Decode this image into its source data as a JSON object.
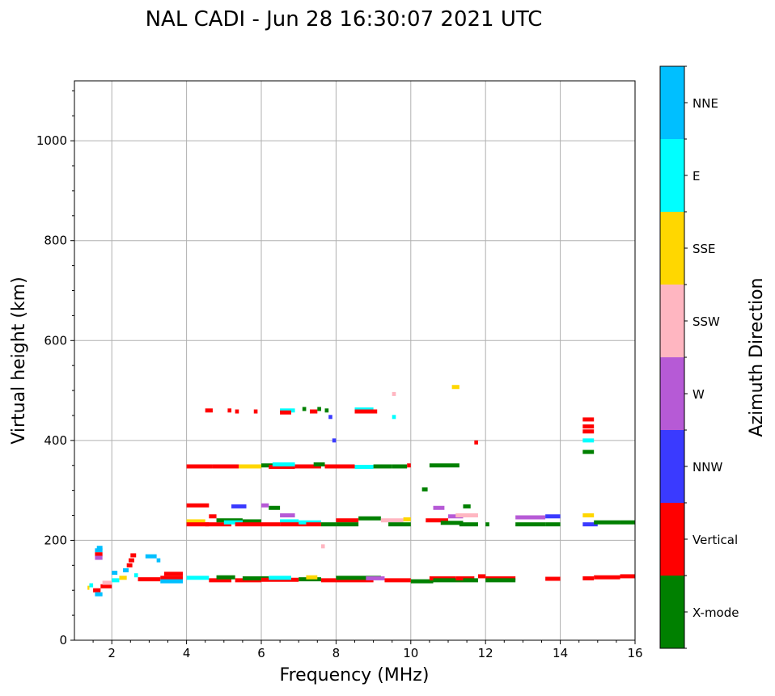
{
  "chart_data": {
    "type": "scatter",
    "title": "NAL CADI - Jun 28 16:30:07 2021 UTC",
    "xlabel": "Frequency (MHz)",
    "ylabel": "Virtual height (km)",
    "xlim": [
      1,
      16
    ],
    "ylim": [
      0,
      1120
    ],
    "xticks": [
      2,
      4,
      6,
      8,
      10,
      12,
      14,
      16
    ],
    "yticks": [
      0,
      200,
      400,
      600,
      800,
      1000
    ],
    "grid": true,
    "colorbar": {
      "label": "Azimuth Direction",
      "categories": [
        "X-mode",
        "Vertical",
        "NNW",
        "W",
        "SSW",
        "SSE",
        "E",
        "NNE"
      ],
      "colors": [
        "#008000",
        "#ff0000",
        "#3a3aff",
        "#b65ad6",
        "#ffb6c1",
        "#ffd700",
        "#00ffff",
        "#00bfff"
      ]
    },
    "segments_format": [
      "freq_start_MHz",
      "freq_end_MHz",
      "height_km",
      "direction_index"
    ],
    "segments": [
      [
        1.35,
        1.4,
        105,
        5
      ],
      [
        1.4,
        1.5,
        110,
        6
      ],
      [
        1.5,
        1.7,
        100,
        1
      ],
      [
        1.55,
        1.75,
        92,
        7
      ],
      [
        1.55,
        1.75,
        180,
        7
      ],
      [
        1.55,
        1.75,
        172,
        1
      ],
      [
        1.55,
        1.75,
        165,
        3
      ],
      [
        1.6,
        1.75,
        185,
        7
      ],
      [
        1.7,
        2.0,
        108,
        1
      ],
      [
        1.75,
        2.0,
        115,
        4
      ],
      [
        2.0,
        2.2,
        120,
        6
      ],
      [
        2.0,
        2.15,
        135,
        7
      ],
      [
        2.2,
        2.4,
        125,
        5
      ],
      [
        2.3,
        2.45,
        140,
        7
      ],
      [
        2.4,
        2.55,
        150,
        1
      ],
      [
        2.45,
        2.6,
        160,
        1
      ],
      [
        2.5,
        2.65,
        170,
        1
      ],
      [
        2.6,
        2.7,
        130,
        6
      ],
      [
        2.7,
        3.3,
        122,
        1
      ],
      [
        2.9,
        3.2,
        168,
        7
      ],
      [
        3.2,
        3.3,
        160,
        7
      ],
      [
        3.3,
        3.9,
        125,
        1
      ],
      [
        3.3,
        3.9,
        118,
        7
      ],
      [
        3.4,
        3.9,
        133,
        1
      ],
      [
        4.0,
        4.6,
        125,
        6
      ],
      [
        4.6,
        5.2,
        120,
        1
      ],
      [
        4.8,
        5.3,
        126,
        0
      ],
      [
        5.3,
        6.0,
        120,
        1
      ],
      [
        5.5,
        6.2,
        124,
        0
      ],
      [
        6.0,
        7.0,
        121,
        1
      ],
      [
        6.2,
        6.8,
        125,
        6
      ],
      [
        7.0,
        7.6,
        122,
        0
      ],
      [
        7.2,
        7.5,
        126,
        5
      ],
      [
        7.6,
        8.0,
        120,
        1
      ],
      [
        8.0,
        9.0,
        120,
        1
      ],
      [
        8.0,
        9.2,
        125,
        0
      ],
      [
        8.8,
        9.3,
        124,
        3
      ],
      [
        9.3,
        10.0,
        120,
        1
      ],
      [
        10.0,
        10.6,
        118,
        0
      ],
      [
        10.5,
        11.2,
        124,
        1
      ],
      [
        10.6,
        11.4,
        120,
        0
      ],
      [
        11.2,
        11.7,
        124,
        1
      ],
      [
        11.4,
        11.8,
        120,
        0
      ],
      [
        11.8,
        12.0,
        128,
        1
      ],
      [
        12.0,
        12.8,
        124,
        1
      ],
      [
        12.0,
        12.8,
        120,
        0
      ],
      [
        13.6,
        14.0,
        123,
        1
      ],
      [
        14.6,
        14.9,
        124,
        1
      ],
      [
        14.9,
        15.6,
        126,
        1
      ],
      [
        15.6,
        16.0,
        128,
        1
      ],
      [
        4.0,
        4.5,
        238,
        5
      ],
      [
        4.0,
        4.6,
        232,
        1
      ],
      [
        4.5,
        5.2,
        232,
        1
      ],
      [
        4.8,
        5.5,
        240,
        0
      ],
      [
        5.0,
        5.6,
        236,
        6
      ],
      [
        5.5,
        6.0,
        238,
        0
      ],
      [
        5.3,
        6.0,
        232,
        1
      ],
      [
        6.0,
        6.5,
        232,
        1
      ],
      [
        6.2,
        6.5,
        265,
        0
      ],
      [
        6.5,
        6.9,
        250,
        3
      ],
      [
        6.5,
        7.0,
        238,
        6
      ],
      [
        6.5,
        7.2,
        232,
        1
      ],
      [
        7.0,
        7.6,
        236,
        6
      ],
      [
        7.2,
        7.6,
        232,
        1
      ],
      [
        7.6,
        8.0,
        232,
        0
      ],
      [
        8.0,
        8.6,
        240,
        1
      ],
      [
        8.0,
        8.6,
        232,
        0
      ],
      [
        8.6,
        9.2,
        244,
        0
      ],
      [
        9.2,
        9.8,
        240,
        4
      ],
      [
        9.4,
        10.0,
        232,
        0
      ],
      [
        9.8,
        10.0,
        242,
        5
      ],
      [
        4.0,
        4.6,
        270,
        1
      ],
      [
        4.6,
        4.8,
        248,
        1
      ],
      [
        5.2,
        5.6,
        268,
        2
      ],
      [
        6.0,
        6.2,
        270,
        3
      ],
      [
        10.4,
        11.0,
        240,
        1
      ],
      [
        10.6,
        10.9,
        265,
        3
      ],
      [
        10.8,
        11.4,
        235,
        0
      ],
      [
        11.0,
        11.4,
        248,
        3
      ],
      [
        11.2,
        11.8,
        250,
        4
      ],
      [
        11.3,
        11.8,
        232,
        0
      ],
      [
        11.4,
        11.6,
        268,
        0
      ],
      [
        12.0,
        12.1,
        232,
        0
      ],
      [
        12.8,
        13.6,
        232,
        0
      ],
      [
        12.8,
        13.6,
        246,
        3
      ],
      [
        13.6,
        14.0,
        232,
        0
      ],
      [
        13.6,
        14.0,
        248,
        2
      ],
      [
        14.6,
        14.9,
        250,
        5
      ],
      [
        14.6,
        15.0,
        232,
        2
      ],
      [
        14.9,
        15.6,
        236,
        0
      ],
      [
        15.6,
        16.0,
        236,
        0
      ],
      [
        4.0,
        4.7,
        348,
        1
      ],
      [
        4.7,
        5.4,
        348,
        1
      ],
      [
        5.4,
        6.0,
        348,
        5
      ],
      [
        6.0,
        6.5,
        350,
        0
      ],
      [
        6.2,
        6.9,
        347,
        1
      ],
      [
        6.3,
        6.9,
        352,
        6
      ],
      [
        6.9,
        7.6,
        348,
        1
      ],
      [
        7.4,
        7.7,
        352,
        0
      ],
      [
        7.7,
        8.5,
        348,
        1
      ],
      [
        8.5,
        9.0,
        347,
        6
      ],
      [
        9.0,
        9.5,
        348,
        0
      ],
      [
        9.5,
        9.9,
        348,
        0
      ],
      [
        9.9,
        10.0,
        350,
        1
      ],
      [
        10.5,
        11.0,
        350,
        0
      ],
      [
        11.0,
        11.3,
        350,
        0
      ],
      [
        10.3,
        10.45,
        302,
        0
      ],
      [
        4.5,
        4.7,
        460,
        1
      ],
      [
        5.1,
        5.2,
        460,
        1
      ],
      [
        5.3,
        5.4,
        458,
        1
      ],
      [
        5.8,
        5.9,
        458,
        1
      ],
      [
        6.5,
        6.9,
        460,
        6
      ],
      [
        6.5,
        6.8,
        456,
        1
      ],
      [
        7.1,
        7.2,
        463,
        0
      ],
      [
        7.3,
        7.5,
        458,
        1
      ],
      [
        7.5,
        7.6,
        463,
        0
      ],
      [
        7.7,
        7.8,
        460,
        0
      ],
      [
        8.5,
        9.0,
        462,
        6
      ],
      [
        8.5,
        9.1,
        458,
        1
      ],
      [
        7.9,
        8.0,
        400,
        2
      ],
      [
        7.8,
        7.9,
        447,
        2
      ],
      [
        9.5,
        9.6,
        447,
        6
      ],
      [
        9.5,
        9.6,
        493,
        4
      ],
      [
        11.1,
        11.3,
        507,
        5
      ],
      [
        11.7,
        11.8,
        396,
        1
      ],
      [
        14.6,
        14.9,
        442,
        1
      ],
      [
        14.6,
        14.9,
        428,
        1
      ],
      [
        14.6,
        14.9,
        418,
        1
      ],
      [
        14.6,
        14.9,
        400,
        6
      ],
      [
        14.6,
        14.9,
        377,
        0
      ],
      [
        7.6,
        7.7,
        188,
        4
      ]
    ]
  }
}
